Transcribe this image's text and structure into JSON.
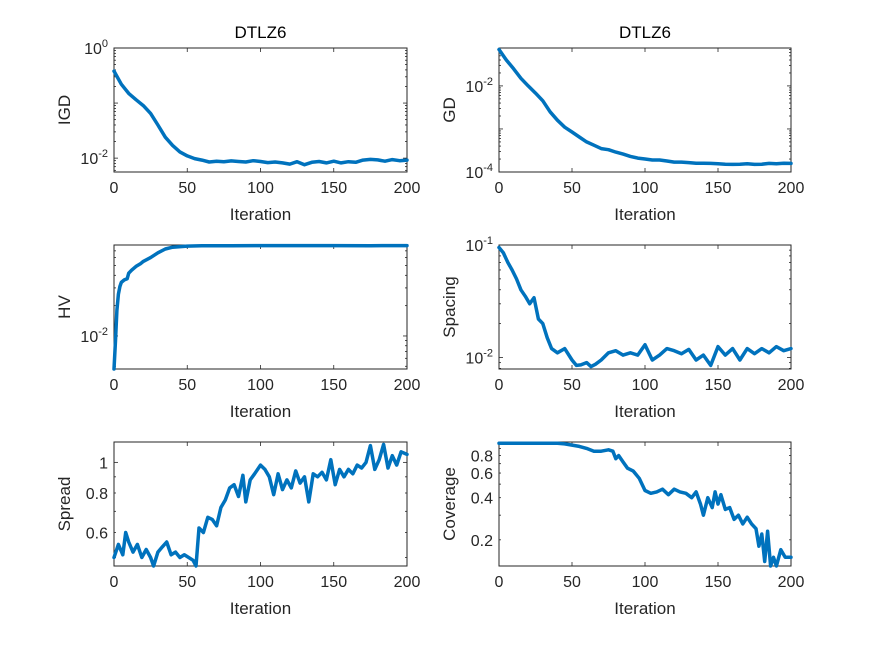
{
  "chart_data": [
    {
      "type": "line",
      "title": "DTLZ6",
      "xlabel": "Iteration",
      "ylabel": "IGD",
      "yscale": "log",
      "xlim": [
        0,
        200
      ],
      "ylim": [
        0.0056,
        1
      ],
      "xticks": [
        "0",
        "50",
        "100",
        "150",
        "200"
      ],
      "yticks": [
        {
          "value": 1,
          "base": "10",
          "exp": "0"
        },
        {
          "value": 0.01,
          "base": "10",
          "exp": "-2"
        }
      ],
      "color": "#0072BD",
      "x": [
        0,
        5,
        10,
        15,
        20,
        25,
        30,
        35,
        40,
        45,
        50,
        55,
        60,
        65,
        70,
        75,
        80,
        85,
        90,
        95,
        100,
        105,
        110,
        115,
        120,
        125,
        130,
        135,
        140,
        145,
        150,
        155,
        160,
        165,
        170,
        175,
        180,
        185,
        190,
        195,
        200
      ],
      "y": [
        0.38,
        0.22,
        0.15,
        0.115,
        0.09,
        0.065,
        0.04,
        0.024,
        0.017,
        0.013,
        0.011,
        0.0098,
        0.0092,
        0.0085,
        0.0088,
        0.0086,
        0.0089,
        0.0087,
        0.0085,
        0.009,
        0.0087,
        0.0083,
        0.0085,
        0.0082,
        0.0078,
        0.0086,
        0.0076,
        0.0084,
        0.0087,
        0.0082,
        0.0088,
        0.0082,
        0.0086,
        0.0084,
        0.0092,
        0.0095,
        0.0093,
        0.0088,
        0.0094,
        0.009,
        0.0092
      ]
    },
    {
      "type": "line",
      "title": "DTLZ6",
      "xlabel": "Iteration",
      "ylabel": "GD",
      "yscale": "log",
      "xlim": [
        0,
        200
      ],
      "ylim": [
        0.0001,
        0.076
      ],
      "xticks": [
        "0",
        "50",
        "100",
        "150",
        "200"
      ],
      "yticks": [
        {
          "value": 0.01,
          "base": "10",
          "exp": "-2"
        },
        {
          "value": 0.0001,
          "base": "10",
          "exp": "-4"
        }
      ],
      "color": "#0072BD",
      "x": [
        0,
        5,
        10,
        15,
        20,
        25,
        30,
        35,
        40,
        45,
        50,
        55,
        60,
        65,
        70,
        75,
        80,
        85,
        90,
        95,
        100,
        105,
        110,
        115,
        120,
        125,
        130,
        135,
        140,
        145,
        150,
        155,
        160,
        165,
        170,
        175,
        180,
        185,
        190,
        195,
        200
      ],
      "y": [
        0.07,
        0.04,
        0.025,
        0.015,
        0.01,
        0.0068,
        0.0045,
        0.0025,
        0.0016,
        0.0011,
        0.00085,
        0.00065,
        0.0005,
        0.00042,
        0.00035,
        0.00033,
        0.00029,
        0.00026,
        0.00023,
        0.00021,
        0.0002,
        0.00019,
        0.00019,
        0.00018,
        0.00017,
        0.00017,
        0.000165,
        0.00016,
        0.00016,
        0.000158,
        0.000155,
        0.000152,
        0.00015,
        0.000152,
        0.000155,
        0.00015,
        0.000152,
        0.000158,
        0.000155,
        0.00016,
        0.000158
      ]
    },
    {
      "type": "line",
      "title": "",
      "xlabel": "Iteration",
      "ylabel": "HV",
      "yscale": "log",
      "xlim": [
        0,
        200
      ],
      "ylim": [
        0.0047,
        0.08
      ],
      "xticks": [
        "0",
        "50",
        "100",
        "150",
        "200"
      ],
      "yticks": [
        {
          "value": 0.01,
          "base": "10",
          "exp": "-2"
        }
      ],
      "color": "#0072BD",
      "x": [
        0,
        1,
        2,
        3,
        4,
        5,
        7,
        9,
        10,
        12,
        15,
        18,
        20,
        25,
        30,
        35,
        40,
        50,
        60,
        80,
        100,
        120,
        150,
        175,
        200
      ],
      "y": [
        0.0047,
        0.009,
        0.018,
        0.026,
        0.031,
        0.034,
        0.036,
        0.037,
        0.042,
        0.045,
        0.049,
        0.052,
        0.055,
        0.06,
        0.067,
        0.073,
        0.076,
        0.078,
        0.0785,
        0.0788,
        0.0789,
        0.0789,
        0.0789,
        0.0788,
        0.0789
      ]
    },
    {
      "type": "line",
      "title": "",
      "xlabel": "Iteration",
      "ylabel": "Spacing",
      "yscale": "log",
      "xlim": [
        0,
        200
      ],
      "ylim": [
        0.0079,
        0.1
      ],
      "xticks": [
        "0",
        "50",
        "100",
        "150",
        "200"
      ],
      "yticks": [
        {
          "value": 0.1,
          "base": "10",
          "exp": "-1"
        },
        {
          "value": 0.01,
          "base": "10",
          "exp": "-2"
        }
      ],
      "color": "#0072BD",
      "x": [
        0,
        3,
        6,
        9,
        12,
        15,
        18,
        21,
        24,
        27,
        30,
        33,
        36,
        40,
        45,
        50,
        53,
        56,
        60,
        63,
        66,
        70,
        75,
        80,
        85,
        90,
        95,
        100,
        105,
        110,
        115,
        120,
        125,
        130,
        135,
        140,
        145,
        150,
        155,
        160,
        165,
        170,
        175,
        180,
        185,
        190,
        195,
        200
      ],
      "y": [
        0.095,
        0.085,
        0.07,
        0.06,
        0.05,
        0.04,
        0.035,
        0.03,
        0.034,
        0.022,
        0.02,
        0.015,
        0.012,
        0.011,
        0.012,
        0.0095,
        0.0085,
        0.0086,
        0.009,
        0.0083,
        0.0087,
        0.0095,
        0.011,
        0.0115,
        0.0105,
        0.011,
        0.0105,
        0.013,
        0.0095,
        0.0105,
        0.012,
        0.0115,
        0.0108,
        0.0118,
        0.0095,
        0.0105,
        0.0085,
        0.0125,
        0.0105,
        0.012,
        0.0095,
        0.012,
        0.0108,
        0.012,
        0.011,
        0.0125,
        0.0115,
        0.012
      ]
    },
    {
      "type": "line",
      "title": "",
      "xlabel": "Iteration",
      "ylabel": "Spread",
      "yscale": "log",
      "xlim": [
        0,
        200
      ],
      "ylim": [
        0.47,
        1.16
      ],
      "xticks": [
        "0",
        "50",
        "100",
        "150",
        "200"
      ],
      "yticks": [
        {
          "value": 1,
          "label": "1"
        },
        {
          "value": 0.8,
          "label": "0.8"
        },
        {
          "value": 0.6,
          "label": "0.6"
        }
      ],
      "color": "#0072BD",
      "x": [
        0,
        3,
        6,
        8,
        10,
        13,
        16,
        19,
        22,
        25,
        27,
        30,
        33,
        36,
        39,
        42,
        45,
        48,
        51,
        54,
        56,
        58,
        61,
        64,
        67,
        70,
        73,
        76,
        79,
        82,
        85,
        88,
        90,
        93,
        96,
        100,
        103,
        106,
        109,
        112,
        115,
        118,
        121,
        124,
        127,
        130,
        133,
        136,
        139,
        142,
        145,
        148,
        151,
        154,
        157,
        160,
        163,
        166,
        169,
        172,
        175,
        178,
        181,
        184,
        187,
        190,
        193,
        196,
        200
      ],
      "y": [
        0.5,
        0.55,
        0.51,
        0.6,
        0.56,
        0.52,
        0.55,
        0.5,
        0.53,
        0.5,
        0.47,
        0.52,
        0.54,
        0.56,
        0.51,
        0.52,
        0.5,
        0.51,
        0.5,
        0.49,
        0.47,
        0.62,
        0.6,
        0.67,
        0.66,
        0.63,
        0.72,
        0.76,
        0.83,
        0.85,
        0.78,
        0.91,
        0.75,
        0.88,
        0.92,
        0.98,
        0.95,
        0.9,
        0.79,
        0.92,
        0.82,
        0.88,
        0.83,
        0.94,
        0.86,
        0.9,
        0.75,
        0.92,
        0.9,
        0.93,
        0.88,
        1.02,
        0.85,
        0.95,
        0.9,
        0.95,
        0.92,
        0.98,
        0.96,
        1.0,
        1.13,
        0.95,
        1.02,
        1.14,
        0.96,
        1.05,
        0.98,
        1.08,
        1.06
      ]
    },
    {
      "type": "line",
      "title": "",
      "xlabel": "Iteration",
      "ylabel": "Coverage",
      "yscale": "log",
      "xlim": [
        0,
        200
      ],
      "ylim": [
        0.13,
        1.0
      ],
      "xticks": [
        "0",
        "50",
        "100",
        "150",
        "200"
      ],
      "yticks": [
        {
          "value": 0.8,
          "label": "0.8"
        },
        {
          "value": 0.6,
          "label": "0.6"
        },
        {
          "value": 0.4,
          "label": "0.4"
        },
        {
          "value": 0.2,
          "label": "0.2"
        }
      ],
      "color": "#0072BD",
      "x": [
        0,
        10,
        20,
        30,
        40,
        45,
        50,
        55,
        60,
        65,
        70,
        75,
        78,
        80,
        82,
        85,
        88,
        92,
        96,
        100,
        104,
        108,
        112,
        116,
        120,
        124,
        128,
        132,
        135,
        138,
        140,
        143,
        146,
        148,
        150,
        152,
        155,
        158,
        161,
        164,
        167,
        170,
        173,
        176,
        178,
        180,
        182,
        184,
        186,
        188,
        190,
        193,
        196,
        200
      ],
      "y": [
        0.98,
        0.98,
        0.98,
        0.98,
        0.98,
        0.97,
        0.95,
        0.93,
        0.9,
        0.86,
        0.86,
        0.88,
        0.86,
        0.76,
        0.8,
        0.72,
        0.65,
        0.62,
        0.55,
        0.45,
        0.43,
        0.44,
        0.46,
        0.42,
        0.46,
        0.44,
        0.43,
        0.4,
        0.44,
        0.36,
        0.3,
        0.4,
        0.34,
        0.44,
        0.36,
        0.42,
        0.33,
        0.34,
        0.28,
        0.3,
        0.26,
        0.29,
        0.26,
        0.24,
        0.18,
        0.22,
        0.14,
        0.23,
        0.13,
        0.15,
        0.13,
        0.17,
        0.15,
        0.15
      ]
    }
  ]
}
